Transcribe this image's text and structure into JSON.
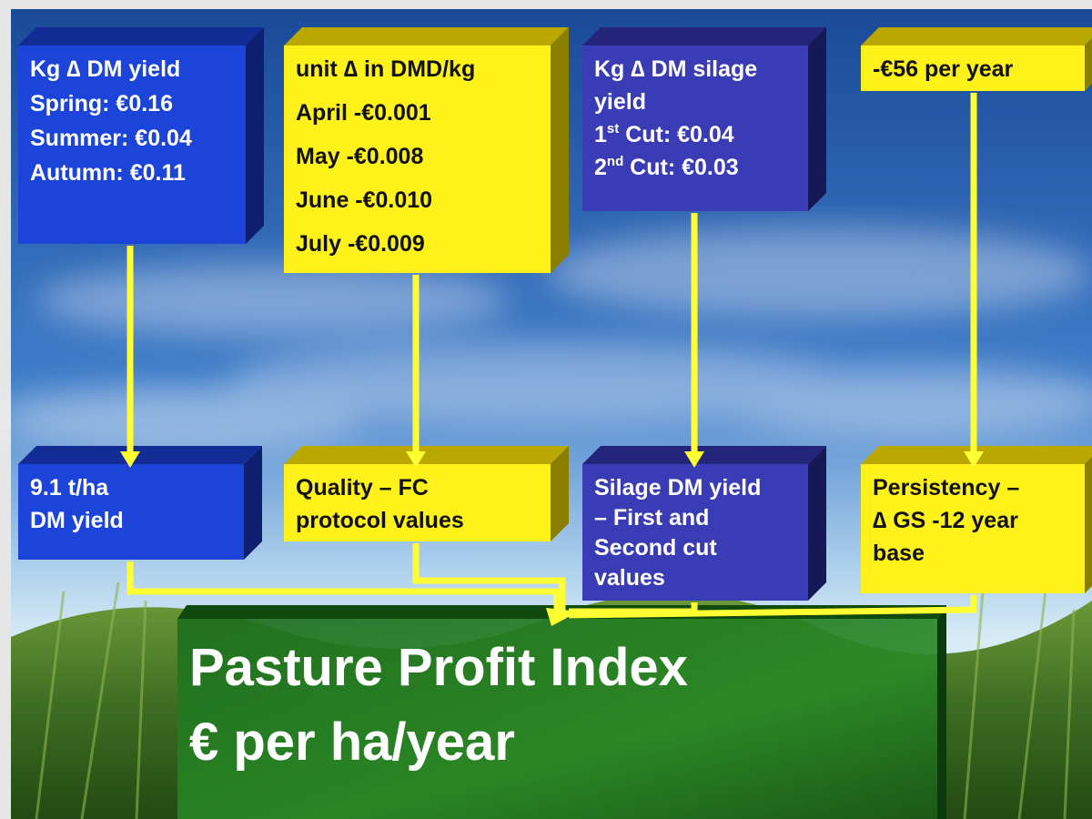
{
  "top_boxes": [
    {
      "lines": [
        "Kg ∆ DM yield",
        "Spring: €0.16",
        "Summer: €0.04",
        "Autumn: €0.11"
      ]
    },
    {
      "lines": [
        "unit ∆ in DMD/kg",
        "April -€0.001",
        "May -€0.008",
        "June -€0.010",
        "July -€0.009"
      ]
    },
    {
      "lines": [
        "Kg ∆ DM silage",
        "yield",
        {
          "before": "1",
          "sup": "st",
          "after": " Cut: €0.04"
        },
        {
          "before": "2",
          "sup": "nd",
          "after": " Cut: €0.03"
        }
      ]
    },
    {
      "lines": [
        "-€56 per year"
      ]
    }
  ],
  "bottom_boxes": [
    {
      "lines": [
        "9.1 t/ha",
        "DM yield"
      ]
    },
    {
      "lines": [
        "Quality – FC",
        "protocol values"
      ]
    },
    {
      "lines": [
        "Silage DM yield",
        "– First and",
        "Second cut",
        "values"
      ]
    },
    {
      "lines": [
        "Persistency –",
        "∆ GS -12 year",
        "base"
      ]
    }
  ],
  "result": {
    "lines": [
      "Pasture Profit Index",
      "€ per ha/year"
    ]
  }
}
